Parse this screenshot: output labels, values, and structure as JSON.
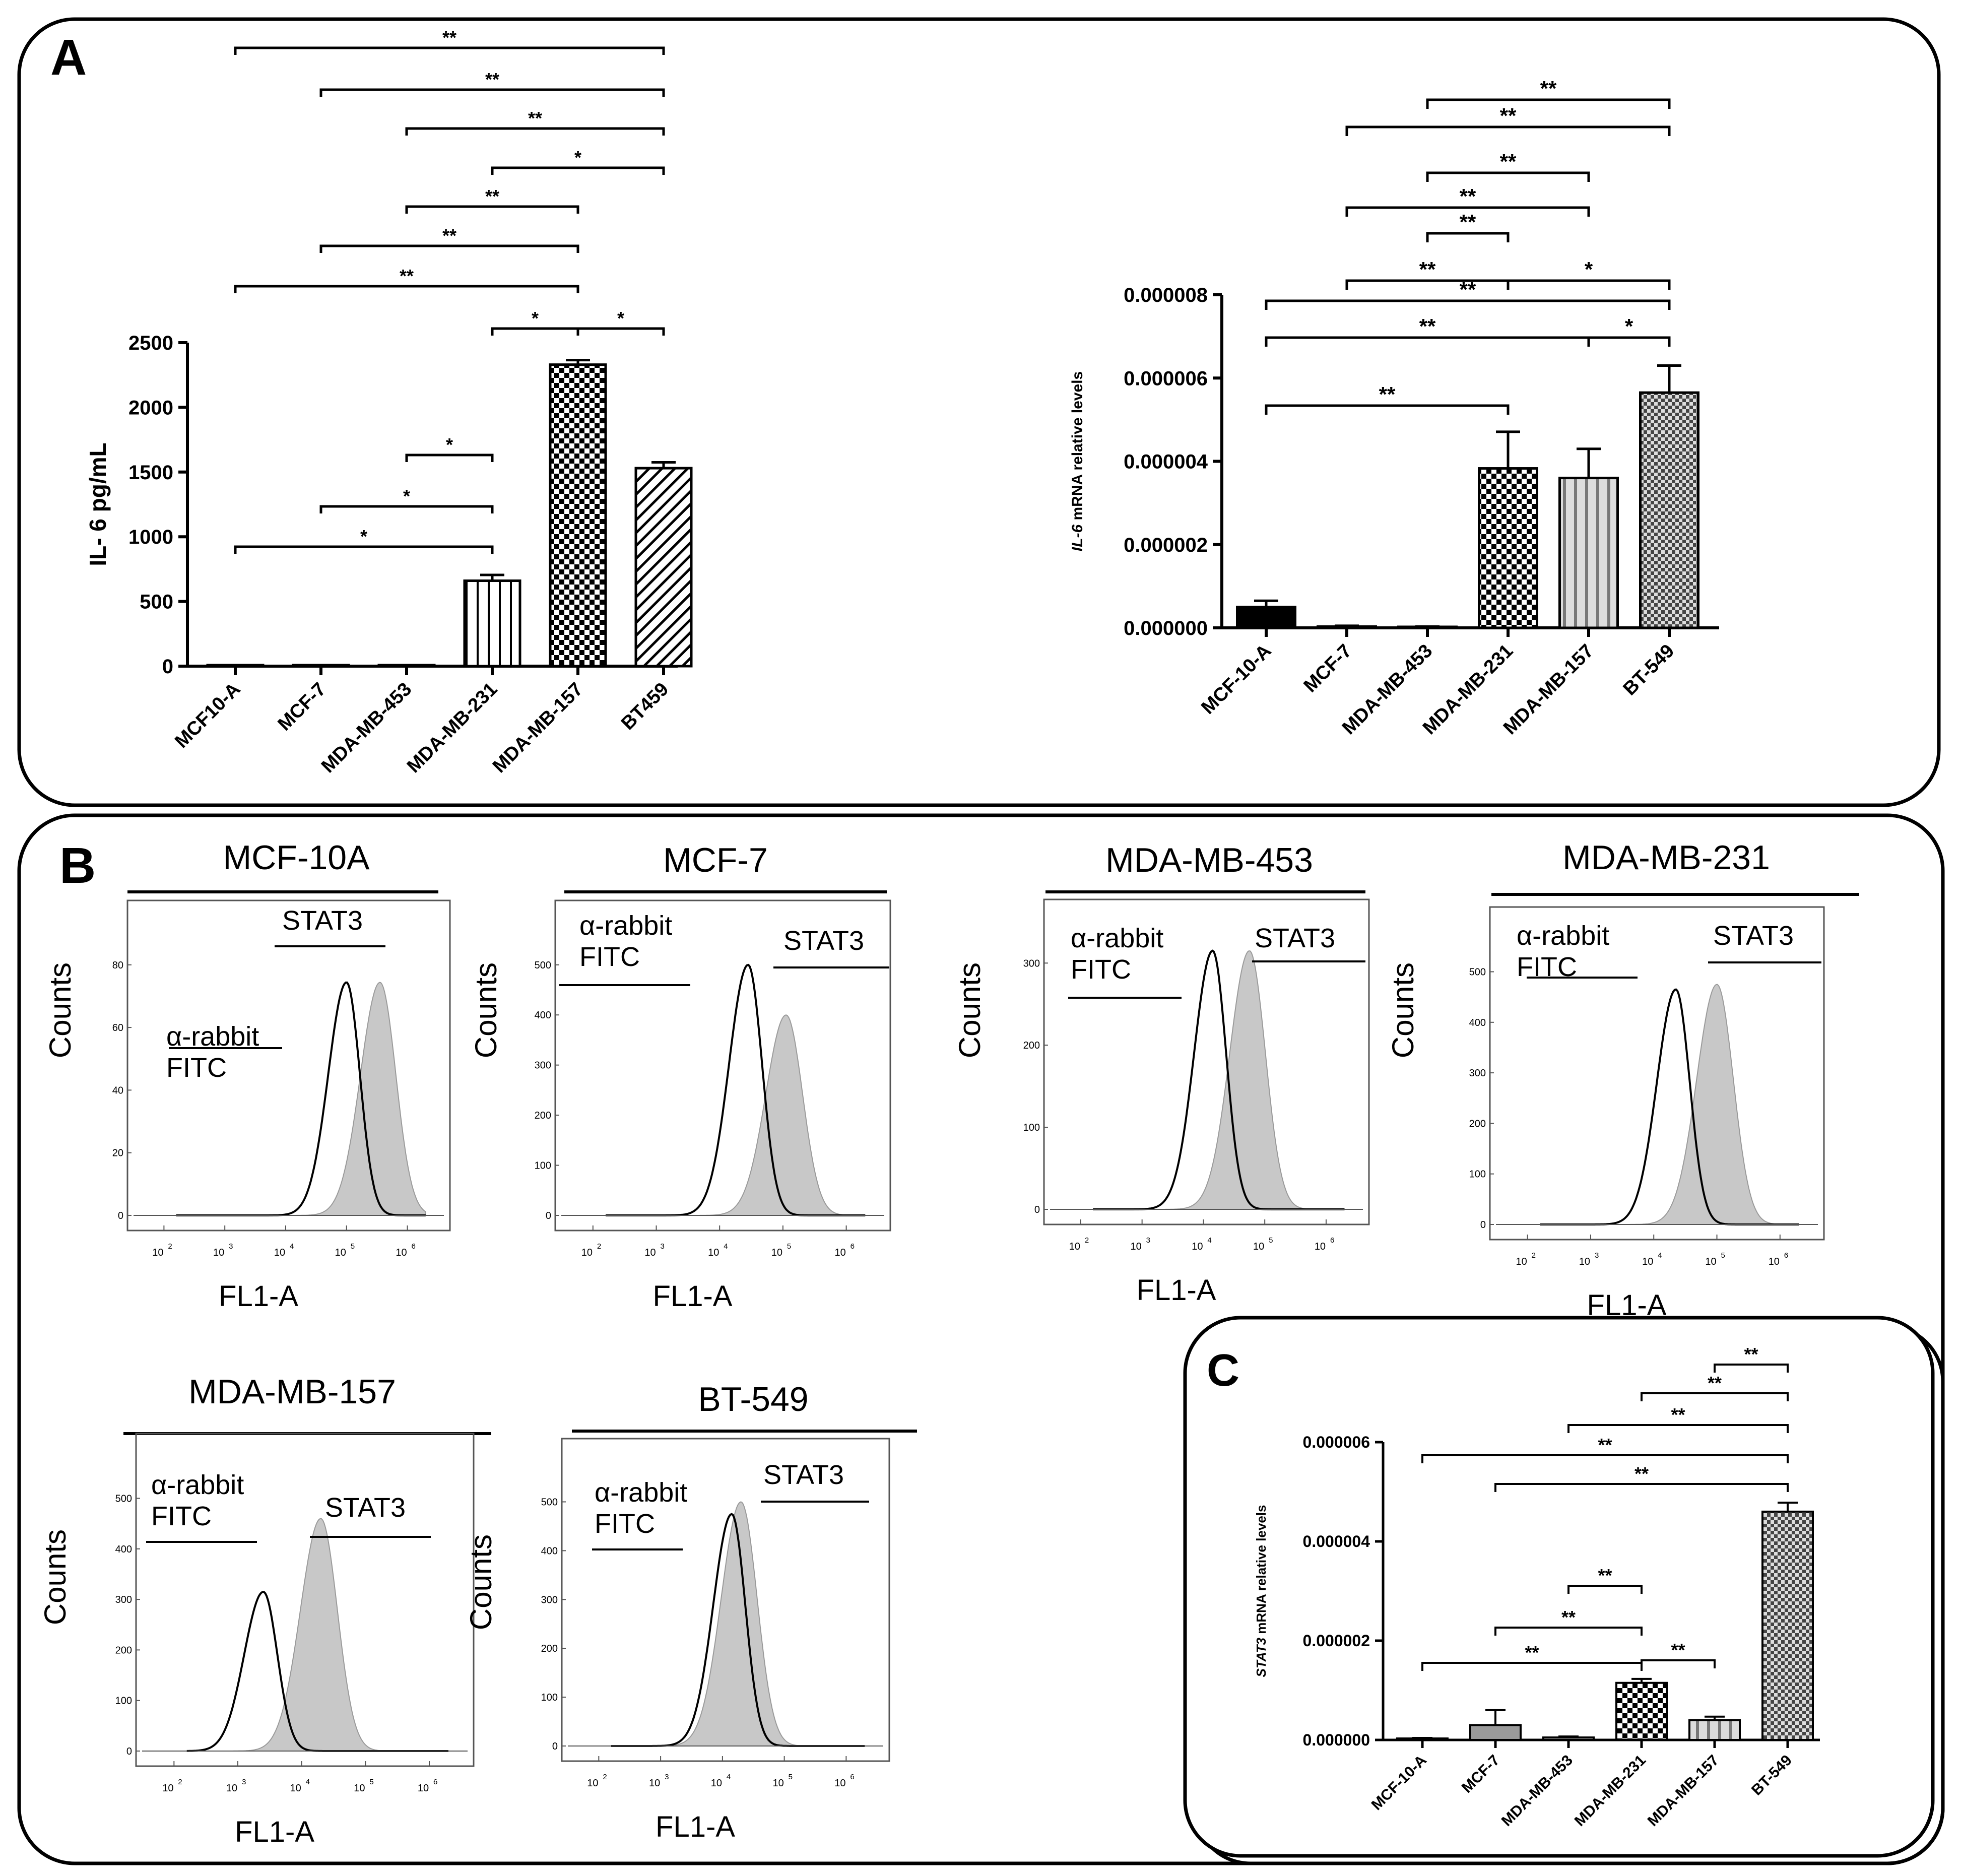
{
  "panel_labels": {
    "a": "A",
    "b": "B",
    "c": "C"
  },
  "colors": {
    "ink": "#000000",
    "fill_gray": "#c8c8c8",
    "light_gray": "#9a9a9a"
  },
  "chart_data": [
    {
      "id": "il6_protein",
      "type": "bar",
      "ylabel": "IL- 6 pg/mL",
      "ylim": [
        0,
        2500
      ],
      "yticks": [
        "0",
        "500",
        "1000",
        "1500",
        "2000",
        "2500"
      ],
      "categories": [
        "MCF10-A",
        "MCF-7",
        "MDA-MB-453",
        "MDA-MB-231",
        "MDA-MB-157",
        "BT459"
      ],
      "values": [
        0,
        0,
        0,
        660,
        2330,
        1530
      ],
      "errors": [
        0,
        0,
        0,
        45,
        35,
        45
      ],
      "patterns": [
        "none",
        "none",
        "none",
        "vlines",
        "checker",
        "diag"
      ],
      "comparisons": [
        {
          "from": 0,
          "to": 5,
          "label": "**"
        },
        {
          "from": 1,
          "to": 5,
          "label": "**"
        },
        {
          "from": 2,
          "to": 5,
          "label": "**"
        },
        {
          "from": 3,
          "to": 5,
          "label": "*"
        },
        {
          "from": 2,
          "to": 4,
          "label": "**"
        },
        {
          "from": 1,
          "to": 4,
          "label": "**"
        },
        {
          "from": 0,
          "to": 4,
          "label": "**"
        },
        {
          "from": 3,
          "to": 4,
          "label": "*"
        },
        {
          "from": 4,
          "to": 5,
          "label": "*"
        },
        {
          "from": 2,
          "to": 3,
          "label": "*"
        },
        {
          "from": 1,
          "to": 3,
          "label": "*"
        },
        {
          "from": 0,
          "to": 3,
          "label": "*"
        }
      ]
    },
    {
      "id": "il6_mrna",
      "type": "bar",
      "ylabel_italic": "IL-6",
      "ylabel_rest": " mRNA relative levels",
      "ylim": [
        0,
        8e-06
      ],
      "yticks": [
        "0.000000",
        "0.000002",
        "0.000004",
        "0.000006",
        "0.000008"
      ],
      "categories": [
        "MCF-10-A",
        "MCF-7",
        "MDA-MB-453",
        "MDA-MB-231",
        "MDA-MB-157",
        "BT-549"
      ],
      "values": [
        5e-07,
        3e-08,
        2e-08,
        3.83e-06,
        3.6e-06,
        5.65e-06
      ],
      "errors": [
        1.5e-07,
        2e-08,
        1e-08,
        8.8e-07,
        7e-07,
        6.5e-07
      ],
      "patterns": [
        "solid",
        "solid",
        "solid",
        "checker",
        "vlines-gray",
        "checker-gray"
      ],
      "comparisons": [
        {
          "from": 2,
          "to": 5,
          "label": "**"
        },
        {
          "from": 1,
          "to": 5,
          "label": "**"
        },
        {
          "from": 2,
          "to": 4,
          "label": "**"
        },
        {
          "from": 1,
          "to": 4,
          "label": "**"
        },
        {
          "from": 2,
          "to": 3,
          "label": "**"
        },
        {
          "from": 1,
          "to": 3,
          "label": "**"
        },
        {
          "from": 3,
          "to": 5,
          "label": "*"
        },
        {
          "from": 0,
          "to": 5,
          "label": "**"
        },
        {
          "from": 0,
          "to": 4,
          "label": "**"
        },
        {
          "from": 4,
          "to": 5,
          "label": "*"
        },
        {
          "from": 0,
          "to": 3,
          "label": "**"
        }
      ]
    },
    {
      "id": "stat3_mrna",
      "type": "bar",
      "ylabel_italic": "STAT3",
      "ylabel_rest": " mRNA relative levels",
      "ylim": [
        0,
        6e-06
      ],
      "yticks": [
        "0.000000",
        "0.000002",
        "0.000004",
        "0.000006"
      ],
      "categories": [
        "MCF-10-A",
        "MCF-7",
        "MDA-MB-453",
        "MDA-MB-231",
        "MDA-MB-157",
        "BT-549"
      ],
      "values": [
        3e-08,
        3e-07,
        5e-08,
        1.15e-06,
        4e-07,
        4.6e-06
      ],
      "errors": [
        1e-08,
        3e-07,
        2e-08,
        8e-08,
        7e-08,
        1.8e-07
      ],
      "patterns": [
        "gray",
        "gray",
        "gray",
        "checker",
        "vlines-gray",
        "checker-gray"
      ],
      "comparisons": [
        {
          "from": 4,
          "to": 5,
          "label": "**"
        },
        {
          "from": 3,
          "to": 5,
          "label": "**"
        },
        {
          "from": 2,
          "to": 5,
          "label": "**"
        },
        {
          "from": 0,
          "to": 5,
          "label": "**"
        },
        {
          "from": 1,
          "to": 5,
          "label": "**"
        },
        {
          "from": 2,
          "to": 3,
          "label": "**"
        },
        {
          "from": 1,
          "to": 3,
          "label": "**"
        },
        {
          "from": 3,
          "to": 4,
          "label": "**"
        },
        {
          "from": 0,
          "to": 3,
          "label": "**"
        }
      ]
    }
  ],
  "flow": {
    "xlabel": "FL1-A",
    "ylabel": "Counts",
    "isotype_line1": "α-rabbit",
    "isotype_line2": "FITC",
    "stain": "STAT3",
    "xticks": [
      "10",
      "10",
      "10",
      "10",
      "10"
    ],
    "xexps": [
      "2",
      "3",
      "4",
      "5",
      "6"
    ],
    "panels": [
      {
        "title": "MCF-10A",
        "ymax": 80,
        "yticks": [
          "0",
          "20",
          "40",
          "60",
          "80"
        ],
        "iso_peak_log": 5.0,
        "iso_height": 0.93,
        "stat_peak_log": 5.55,
        "stat_height": 0.93
      },
      {
        "title": "MCF-7",
        "ymax": 500,
        "yticks": [
          "0",
          "100",
          "200",
          "300",
          "400",
          "500"
        ],
        "iso_peak_log": 4.45,
        "iso_height": 1.0,
        "stat_peak_log": 5.05,
        "stat_height": 0.8
      },
      {
        "title": "MDA-MB-453",
        "ymax": 300,
        "yticks": [
          "0",
          "100",
          "200",
          "300"
        ],
        "iso_peak_log": 4.15,
        "iso_height": 1.05,
        "stat_peak_log": 4.75,
        "stat_height": 1.05
      },
      {
        "title": "MDA-MB-231",
        "ymax": 500,
        "yticks": [
          "0",
          "100",
          "200",
          "300",
          "400",
          "500"
        ],
        "iso_peak_log": 4.35,
        "iso_height": 0.93,
        "stat_peak_log": 5.0,
        "stat_height": 0.95
      },
      {
        "title": "MDA-MB-157",
        "ymax": 500,
        "yticks": [
          "0",
          "100",
          "200",
          "300",
          "400",
          "500"
        ],
        "iso_peak_log": 3.4,
        "iso_height": 0.63,
        "stat_peak_log": 4.3,
        "stat_height": 0.92
      },
      {
        "title": "BT-549",
        "ymax": 500,
        "yticks": [
          "0",
          "100",
          "200",
          "300",
          "400",
          "500"
        ],
        "iso_peak_log": 4.15,
        "iso_height": 0.95,
        "stat_peak_log": 4.3,
        "stat_height": 1.0
      }
    ]
  }
}
